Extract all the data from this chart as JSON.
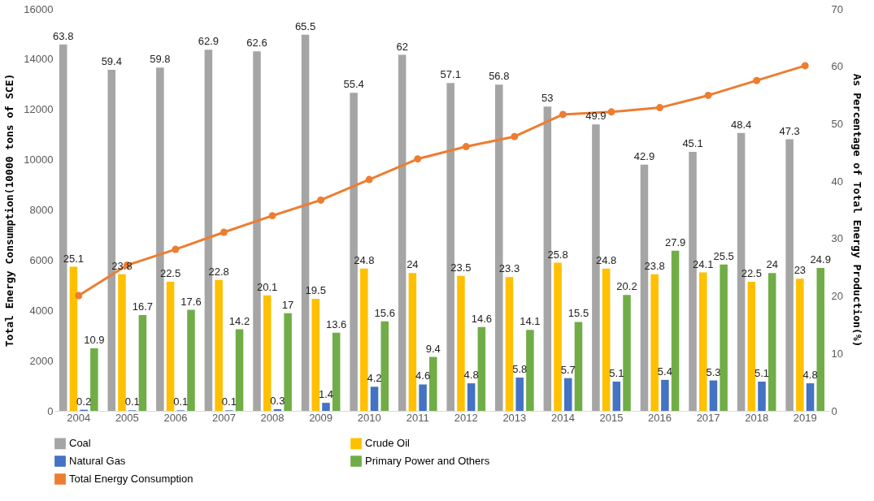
{
  "chart_data": {
    "type": "bar",
    "xlabel": null,
    "ylabel": "Total Energy Consumption(10000 tons of SCE)",
    "y2label": "As Percentage of Total Energy Production(%)",
    "categories": [
      "2004",
      "2005",
      "2006",
      "2007",
      "2008",
      "2009",
      "2010",
      "2011",
      "2012",
      "2013",
      "2014",
      "2015",
      "2016",
      "2017",
      "2018",
      "2019"
    ],
    "series": [
      {
        "name": "Coal",
        "color": "#a5a5a5",
        "axis": "y2",
        "values": [
          63.8,
          59.4,
          59.8,
          62.9,
          62.6,
          65.5,
          55.4,
          62,
          57.1,
          56.8,
          53,
          49.9,
          42.9,
          45.1,
          48.4,
          47.3
        ],
        "value_labels": [
          "63.8",
          "59.4",
          "59.8",
          "62.9",
          "62.6",
          "65.5",
          "55.4",
          "62",
          "57.1",
          "56.8",
          "53",
          "49.9",
          "42.9",
          "45.1",
          "48.4",
          "47.3"
        ]
      },
      {
        "name": "Crude Oil",
        "color": "#ffc000",
        "axis": "y2",
        "values": [
          25.1,
          23.8,
          22.5,
          22.8,
          20.1,
          19.5,
          24.8,
          24,
          23.5,
          23.3,
          25.8,
          24.8,
          23.8,
          24.1,
          22.5,
          23
        ],
        "value_labels": [
          "25.1",
          "23.8",
          "22.5",
          "22.8",
          "20.1",
          "19.5",
          "24.8",
          "24",
          "23.5",
          "23.3",
          "25.8",
          "24.8",
          "23.8",
          "24.1",
          "22.5",
          "23"
        ]
      },
      {
        "name": "Natural Gas",
        "color": "#4472c4",
        "axis": "y2",
        "values": [
          0.2,
          0.1,
          0.1,
          0.1,
          0.3,
          1.4,
          4.2,
          4.6,
          4.8,
          5.8,
          5.7,
          5.1,
          5.4,
          5.3,
          5.1,
          4.8
        ],
        "value_labels": [
          "0.2",
          "0.1",
          "0.1",
          "0.1",
          "0.3",
          "1.4",
          "4.2",
          "4.6",
          "4.8",
          "5.8",
          "5.7",
          "5.1",
          "5.4",
          "5.3",
          "5.1",
          "4.8"
        ]
      },
      {
        "name": "Primary Power and Others",
        "color": "#70ad47",
        "axis": "y2",
        "values": [
          10.9,
          16.7,
          17.6,
          14.2,
          17,
          13.6,
          15.6,
          9.4,
          14.6,
          14.1,
          15.5,
          20.2,
          27.9,
          25.5,
          24,
          24.9
        ],
        "value_labels": [
          "10.9",
          "16.7",
          "17.6",
          "14.2",
          "17",
          "13.6",
          "15.6",
          "9.4",
          "14.6",
          "14.1",
          "15.5",
          "20.2",
          "27.9",
          "25.5",
          "24",
          "24.9"
        ]
      },
      {
        "name": "Total Energy Consumption",
        "type": "line",
        "color": "#ed7d31",
        "axis": "y",
        "values": [
          4590,
          5800,
          6430,
          7110,
          7770,
          8390,
          9210,
          10030,
          10520,
          10920,
          11800,
          11900,
          12070,
          12560,
          13150,
          13740
        ]
      }
    ],
    "ylim": [
      0,
      16000
    ],
    "yticks": [
      0,
      2000,
      4000,
      6000,
      8000,
      10000,
      12000,
      14000,
      16000
    ],
    "y2lim": [
      0,
      70
    ],
    "y2ticks": [
      0,
      10,
      20,
      30,
      40,
      50,
      60,
      70
    ],
    "grid": false,
    "legend": "bottom",
    "marker": "circle",
    "line_style": "solid"
  }
}
